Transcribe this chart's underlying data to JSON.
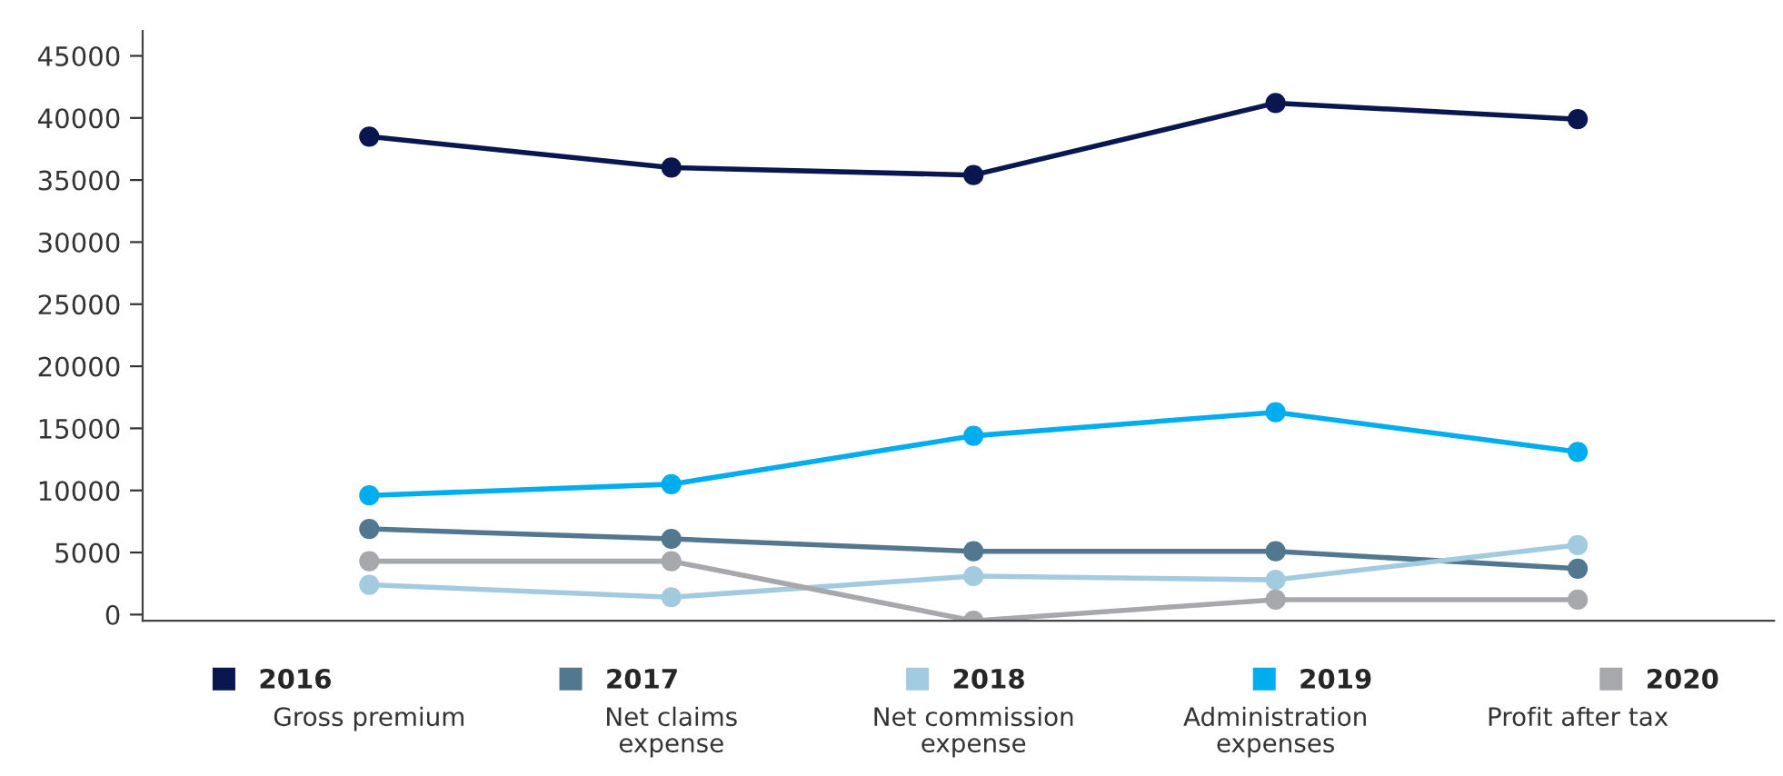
{
  "chart_data": {
    "type": "line",
    "categories": [
      "Gross premium",
      "Net claims expense",
      "Net commission expense",
      "Administration expenses",
      "Profit after tax"
    ],
    "series": [
      {
        "name": "2016",
        "color": "#0a1650",
        "values": [
          38500,
          36000,
          35400,
          41200,
          39900
        ]
      },
      {
        "name": "2017",
        "color": "#51788e",
        "values": [
          6900,
          6100,
          5100,
          5100,
          3700
        ]
      },
      {
        "name": "2018",
        "color": "#a3cbe0",
        "values": [
          2400,
          1400,
          3100,
          2800,
          5600
        ]
      },
      {
        "name": "2019",
        "color": "#00aeef",
        "values": [
          9600,
          10500,
          14400,
          16300,
          13100
        ]
      },
      {
        "name": "2020",
        "color": "#a7a8ab",
        "values": [
          4300,
          4300,
          -500,
          1200,
          1200
        ]
      }
    ],
    "ylim": [
      -500,
      47000
    ],
    "yticks": [
      0,
      5000,
      10000,
      15000,
      20000,
      25000,
      30000,
      35000,
      40000,
      45000
    ],
    "grid": false,
    "legend": "bottom",
    "marker": "circle",
    "line_style": "solid"
  }
}
